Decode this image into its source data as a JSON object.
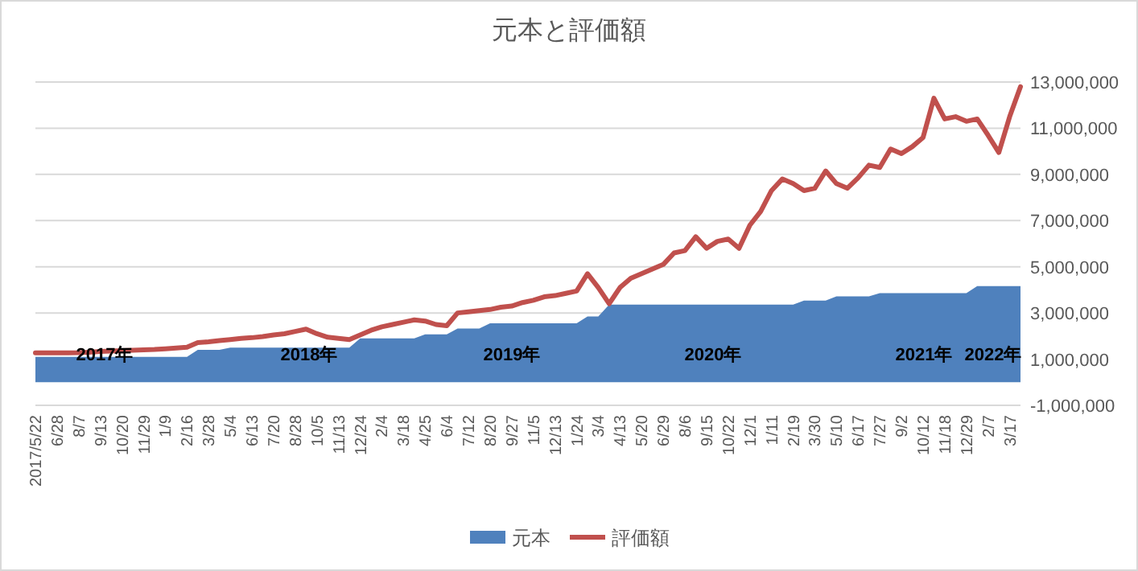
{
  "chart_data": {
    "type": "area",
    "title": "元本と評価額",
    "categories": [
      "2017/5/22",
      null,
      "6/28",
      null,
      "8/7",
      null,
      "9/13",
      null,
      "10/20",
      null,
      "11/29",
      null,
      "1/9",
      null,
      "2/16",
      null,
      "3/28",
      null,
      "5/4",
      null,
      "6/13",
      null,
      "7/20",
      null,
      "8/28",
      null,
      "10/5",
      null,
      "11/13",
      null,
      "12/24",
      null,
      "2/4",
      null,
      "3/18",
      null,
      "4/25",
      null,
      "6/4",
      null,
      "7/12",
      null,
      "8/20",
      null,
      "9/27",
      null,
      "11/5",
      null,
      "12/13",
      null,
      "1/24",
      null,
      "3/4",
      null,
      "4/13",
      null,
      "5/20",
      null,
      "6/29",
      null,
      "8/6",
      null,
      "9/15",
      null,
      "10/22",
      null,
      "12/1",
      null,
      "1/11",
      null,
      "2/19",
      null,
      "3/30",
      null,
      "5/10",
      null,
      "6/17",
      null,
      "7/27",
      null,
      "9/2",
      null,
      "10/12",
      null,
      "11/18",
      null,
      "12/29",
      null,
      "2/7",
      null,
      "3/17",
      null
    ],
    "series": [
      {
        "name": "元本",
        "color": "#4f81bd",
        "values": [
          1100000,
          1100000,
          1100000,
          1100000,
          1100000,
          1100000,
          1100000,
          1100000,
          1100000,
          1100000,
          1100000,
          1100000,
          1100000,
          1100000,
          1100000,
          1400000,
          1400000,
          1400000,
          1500000,
          1500000,
          1500000,
          1500000,
          1500000,
          1500000,
          1500000,
          1500000,
          1500000,
          1500000,
          1500000,
          1500000,
          1900000,
          1900000,
          1900000,
          1900000,
          1900000,
          1900000,
          2070000,
          2070000,
          2070000,
          2330000,
          2330000,
          2330000,
          2550000,
          2550000,
          2550000,
          2550000,
          2550000,
          2550000,
          2550000,
          2550000,
          2550000,
          2850000,
          2850000,
          3360000,
          3360000,
          3360000,
          3360000,
          3360000,
          3360000,
          3360000,
          3360000,
          3360000,
          3360000,
          3360000,
          3360000,
          3360000,
          3360000,
          3360000,
          3360000,
          3360000,
          3360000,
          3540000,
          3540000,
          3540000,
          3720000,
          3720000,
          3720000,
          3720000,
          3860000,
          3860000,
          3860000,
          3860000,
          3860000,
          3860000,
          3860000,
          3860000,
          3860000,
          4160000,
          4160000,
          4160000,
          4160000,
          4160000
        ]
      },
      {
        "name": "評価額",
        "type": "line",
        "color": "#c0504d",
        "values": [
          1270000,
          1270000,
          1270000,
          1270000,
          1280000,
          1300000,
          1330000,
          1350000,
          1370000,
          1390000,
          1400000,
          1420000,
          1450000,
          1480000,
          1520000,
          1720000,
          1750000,
          1800000,
          1850000,
          1900000,
          1930000,
          1980000,
          2050000,
          2100000,
          2200000,
          2300000,
          2100000,
          1950000,
          1900000,
          1850000,
          2050000,
          2250000,
          2400000,
          2500000,
          2600000,
          2700000,
          2650000,
          2500000,
          2450000,
          3000000,
          3050000,
          3100000,
          3150000,
          3250000,
          3300000,
          3450000,
          3550000,
          3700000,
          3750000,
          3850000,
          3950000,
          4700000,
          4100000,
          3400000,
          4100000,
          4500000,
          4700000,
          4900000,
          5100000,
          5600000,
          5700000,
          6300000,
          5800000,
          6100000,
          6200000,
          5800000,
          6800000,
          7400000,
          8300000,
          8800000,
          8600000,
          8300000,
          8400000,
          9150000,
          8600000,
          8400000,
          8850000,
          9400000,
          9300000,
          10100000,
          9900000,
          10200000,
          10600000,
          12300000,
          11400000,
          11500000,
          11300000,
          11400000,
          10700000,
          9950000,
          11500000,
          12800000
        ]
      }
    ],
    "ylim": [
      -1000000,
      13000000
    ],
    "yticks": [
      {
        "value": -1000000,
        "label": "-1,000,000"
      },
      {
        "value": 1000000,
        "label": "1,000,000"
      },
      {
        "value": 3000000,
        "label": "3,000,000"
      },
      {
        "value": 5000000,
        "label": "5,000,000"
      },
      {
        "value": 7000000,
        "label": "7,000,000"
      },
      {
        "value": 9000000,
        "label": "9,000,000"
      },
      {
        "value": 11000000,
        "label": "11,000,000"
      },
      {
        "value": 13000000,
        "label": "13,000,000"
      }
    ],
    "grid": "y",
    "legend": "bottom",
    "annotations": [
      "2017年",
      "2018年",
      "2019年",
      "2020年",
      "2021年",
      "2022年"
    ]
  }
}
